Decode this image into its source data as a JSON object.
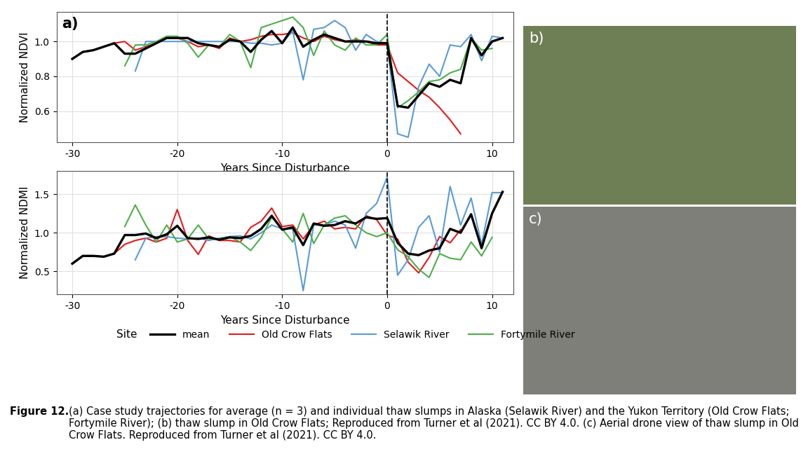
{
  "chart_data": [
    {
      "type": "line",
      "panel_label": "a)",
      "x_label": "Years Since Disturbance",
      "y_label": "Normalized NDVI",
      "xlim": [
        -31.5,
        12
      ],
      "xticks": [
        -30,
        -20,
        -10,
        0,
        10
      ],
      "ylim": [
        0.42,
        1.17
      ],
      "yticks": [
        0.6,
        0.8,
        {
          "value": 1,
          "label": "1.0"
        }
      ],
      "grid": true,
      "vline_x": 0,
      "x": [
        -30,
        -29,
        -28,
        -27,
        -26,
        -25,
        -24,
        -23,
        -22,
        -21,
        -20,
        -19,
        -18,
        -17,
        -16,
        -15,
        -14,
        -13,
        -12,
        -11,
        -10,
        -9,
        -8,
        -7,
        -6,
        -5,
        -4,
        -3,
        -2,
        -1,
        0,
        1,
        2,
        3,
        4,
        5,
        6,
        7,
        8,
        9,
        10,
        11
      ],
      "series": [
        {
          "name": "mean",
          "color": "#000000",
          "values": [
            0.9,
            0.94,
            0.95,
            0.97,
            0.99,
            0.93,
            0.93,
            0.96,
            0.99,
            1.02,
            1.02,
            1.02,
            0.99,
            0.98,
            0.97,
            1.01,
            1.0,
            0.94,
            1.01,
            1.06,
            0.99,
            1.08,
            0.97,
            1.01,
            1.04,
            1.02,
            1.0,
            1.0,
            1.0,
            0.99,
            0.99,
            0.63,
            0.62,
            0.69,
            0.76,
            0.74,
            0.78,
            0.76,
            1.02,
            0.92,
            1.0,
            1.02
          ]
        },
        {
          "name": "Old Crow Flats",
          "color": "#e41a1c",
          "values": [
            0.9,
            0.94,
            0.95,
            0.97,
            0.99,
            1.0,
            0.95,
            0.97,
            0.99,
            1.02,
            1.02,
            1.0,
            0.97,
            0.98,
            0.96,
            1.02,
            1.0,
            1.01,
            1.03,
            1.04,
            1.04,
            1.05,
            1.02,
            1.0,
            1.03,
            1.01,
            1.0,
            1.01,
            1.0,
            0.98,
            0.98,
            0.82,
            0.77,
            0.72,
            0.68,
            0.62,
            0.55,
            0.47,
            null,
            null,
            null,
            null
          ]
        },
        {
          "name": "Selawik River",
          "color": "#5b9bd5",
          "values": [
            null,
            null,
            null,
            null,
            null,
            null,
            0.83,
            1.0,
            1.0,
            1.0,
            1.0,
            1.0,
            1.0,
            1.0,
            1.0,
            1.0,
            1.0,
            0.99,
            0.99,
            0.98,
            0.99,
            1.06,
            0.78,
            1.07,
            1.08,
            1.12,
            1.08,
            0.95,
            1.04,
            1.0,
            0.99,
            0.47,
            0.45,
            0.74,
            0.87,
            0.8,
            0.98,
            0.97,
            1.04,
            0.89,
            1.03,
            1.02
          ]
        },
        {
          "name": "Fortymile River",
          "color": "#4daf4a",
          "values": [
            null,
            null,
            null,
            null,
            null,
            0.86,
            0.98,
            0.98,
            1.0,
            1.03,
            1.03,
            0.99,
            0.91,
            0.98,
            0.97,
            1.04,
            1.0,
            0.85,
            1.08,
            1.1,
            1.12,
            1.14,
            1.08,
            0.92,
            1.06,
            0.98,
            0.95,
            1.02,
            0.98,
            0.98,
            1.04,
            0.62,
            0.66,
            0.71,
            0.77,
            0.78,
            0.82,
            0.84,
            1.02,
            0.95,
            0.96,
            null
          ]
        }
      ]
    },
    {
      "type": "line",
      "x_label": "Years Since Disturbance",
      "y_label": "Normalized NDMI",
      "xlim": [
        -31.5,
        12
      ],
      "xticks": [
        -30,
        -20,
        -10,
        0,
        10
      ],
      "ylim": [
        0.2,
        1.8
      ],
      "yticks": [
        0.5,
        {
          "value": 1,
          "label": "1.0"
        },
        1.5
      ],
      "grid": true,
      "vline_x": 0,
      "x": [
        -30,
        -29,
        -28,
        -27,
        -26,
        -25,
        -24,
        -23,
        -22,
        -21,
        -20,
        -19,
        -18,
        -17,
        -16,
        -15,
        -14,
        -13,
        -12,
        -11,
        -10,
        -9,
        -8,
        -7,
        -6,
        -5,
        -4,
        -3,
        -2,
        -1,
        0,
        1,
        2,
        3,
        4,
        5,
        6,
        7,
        8,
        9,
        10,
        11
      ],
      "series": [
        {
          "name": "mean",
          "color": "#000000",
          "values": [
            0.6,
            0.7,
            0.7,
            0.69,
            0.73,
            0.97,
            0.97,
            0.99,
            0.93,
            0.98,
            1.09,
            0.93,
            0.92,
            0.94,
            0.91,
            0.94,
            0.93,
            0.96,
            1.05,
            1.22,
            1.04,
            1.07,
            0.84,
            1.12,
            1.09,
            1.1,
            1.15,
            1.12,
            1.2,
            1.18,
            1.19,
            0.87,
            0.73,
            0.71,
            0.77,
            0.8,
            1.05,
            1.0,
            1.24,
            0.8,
            1.25,
            1.53
          ]
        },
        {
          "name": "Old Crow Flats",
          "color": "#e41a1c",
          "values": [
            0.6,
            0.7,
            0.7,
            0.69,
            0.73,
            0.85,
            0.9,
            0.93,
            0.88,
            0.93,
            1.3,
            0.9,
            0.72,
            0.96,
            0.9,
            0.9,
            0.88,
            1.07,
            1.15,
            1.32,
            1.08,
            1.1,
            0.92,
            1.1,
            1.15,
            1.05,
            1.07,
            1.05,
            1.22,
            1.17,
            0.97,
            0.92,
            0.62,
            0.48,
            0.68,
            0.95,
            0.87,
            1.04,
            null,
            null,
            null,
            null
          ]
        },
        {
          "name": "Selawik River",
          "color": "#5b9bd5",
          "values": [
            null,
            null,
            null,
            null,
            null,
            null,
            0.65,
            0.93,
            0.95,
            0.95,
            0.93,
            0.92,
            0.93,
            0.9,
            0.93,
            0.95,
            0.96,
            0.92,
            1.0,
            1.1,
            1.05,
            1.05,
            0.25,
            1.1,
            1.1,
            1.15,
            1.1,
            0.8,
            1.25,
            1.38,
            1.72,
            0.45,
            0.65,
            1.07,
            1.22,
            0.75,
            1.6,
            1.1,
            1.45,
            0.85,
            1.52,
            1.52
          ]
        },
        {
          "name": "Fortymile River",
          "color": "#4daf4a",
          "values": [
            null,
            null,
            null,
            null,
            null,
            1.08,
            1.36,
            1.1,
            0.88,
            1.1,
            0.88,
            0.92,
            1.1,
            0.92,
            0.92,
            0.95,
            0.88,
            0.77,
            0.94,
            1.2,
            1.05,
            0.88,
            1.25,
            0.86,
            1.1,
            1.19,
            1.22,
            1.1,
            1.0,
            0.95,
            1.0,
            0.78,
            0.69,
            0.53,
            0.42,
            0.73,
            0.67,
            0.65,
            0.88,
            0.7,
            0.94,
            null
          ]
        }
      ]
    }
  ],
  "legend_title": "Site",
  "legend": "bottom",
  "photo_panels": [
    "b)",
    "c)"
  ],
  "caption_label": "Figure 12.",
  "caption": "(a) Case study trajectories for average (n = 3) and individual thaw slumps in Alaska (Selawik River) and the Yukon Territory (Old Crow Flats; Fortymile River); (b) thaw slump in Old Crow Flats; Reproduced from Turner et al (2021). CC BY 4.0. (c) Aerial drone view of thaw slump in Old Crow Flats. Reproduced from Turner et al (2021). CC BY 4.0."
}
